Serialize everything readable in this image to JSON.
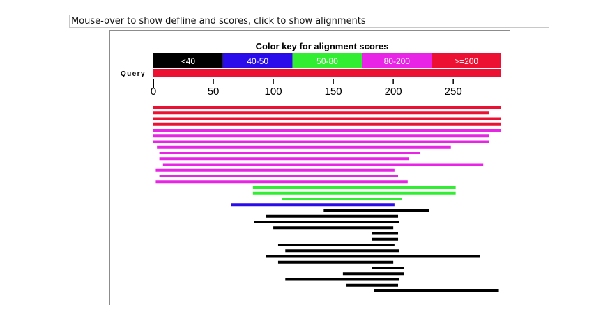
{
  "hint_text": "Mouse-over to show defline and scores, click to show alignments",
  "chart_data": {
    "type": "alignment_overview",
    "title": "Color key for alignment scores",
    "legend": [
      {
        "label": "<40",
        "color": "#000000"
      },
      {
        "label": "40-50",
        "color": "#2a0bea"
      },
      {
        "label": "50-80",
        "color": "#31ee32"
      },
      {
        "label": "80-200",
        "color": "#e825e6"
      },
      {
        "label": ">=200",
        "color": "#ec1132"
      }
    ],
    "query_label": "Query",
    "query_range": [
      0,
      290
    ],
    "x_ticks": [
      0,
      50,
      100,
      150,
      200,
      250
    ],
    "hits": [
      {
        "start": 0,
        "end": 290,
        "score_class": ">=200"
      },
      {
        "start": 0,
        "end": 280,
        "score_class": ">=200"
      },
      {
        "start": 0,
        "end": 290,
        "score_class": ">=200"
      },
      {
        "start": 0,
        "end": 290,
        "score_class": ">=200"
      },
      {
        "start": 0,
        "end": 290,
        "score_class": "80-200"
      },
      {
        "start": 0,
        "end": 280,
        "score_class": "80-200"
      },
      {
        "start": 0,
        "end": 280,
        "score_class": "80-200"
      },
      {
        "start": 3,
        "end": 248,
        "score_class": "80-200"
      },
      {
        "start": 5,
        "end": 222,
        "score_class": "80-200"
      },
      {
        "start": 5,
        "end": 213,
        "score_class": "80-200"
      },
      {
        "start": 8,
        "end": 275,
        "score_class": "80-200"
      },
      {
        "start": 2,
        "end": 201,
        "score_class": "80-200"
      },
      {
        "start": 5,
        "end": 204,
        "score_class": "80-200"
      },
      {
        "start": 2,
        "end": 212,
        "score_class": "80-200"
      },
      {
        "start": 83,
        "end": 252,
        "score_class": "50-80"
      },
      {
        "start": 83,
        "end": 252,
        "score_class": "50-80"
      },
      {
        "start": 107,
        "end": 207,
        "score_class": "50-80"
      },
      {
        "start": 65,
        "end": 201,
        "score_class": "40-50"
      },
      {
        "start": 142,
        "end": 230,
        "score_class": "<40"
      },
      {
        "start": 94,
        "end": 204,
        "score_class": "<40"
      },
      {
        "start": 84,
        "end": 205,
        "score_class": "<40"
      },
      {
        "start": 100,
        "end": 200,
        "score_class": "<40"
      },
      {
        "start": 182,
        "end": 204,
        "score_class": "<40"
      },
      {
        "start": 182,
        "end": 204,
        "score_class": "<40"
      },
      {
        "start": 104,
        "end": 201,
        "score_class": "<40"
      },
      {
        "start": 110,
        "end": 205,
        "score_class": "<40"
      },
      {
        "start": 94,
        "end": 272,
        "score_class": "<40"
      },
      {
        "start": 104,
        "end": 200,
        "score_class": "<40"
      },
      {
        "start": 182,
        "end": 209,
        "score_class": "<40"
      },
      {
        "start": 158,
        "end": 209,
        "score_class": "<40"
      },
      {
        "start": 110,
        "end": 205,
        "score_class": "<40"
      },
      {
        "start": 161,
        "end": 204,
        "score_class": "<40"
      },
      {
        "start": 184,
        "end": 288,
        "score_class": "<40"
      }
    ]
  }
}
